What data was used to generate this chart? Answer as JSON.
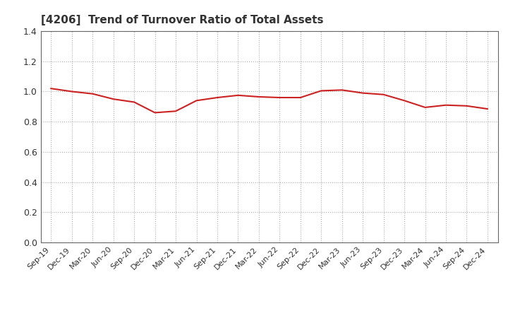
{
  "title": "[4206]  Trend of Turnover Ratio of Total Assets",
  "title_fontsize": 11,
  "line_color": "#cc2222",
  "line_width": 1.5,
  "background_color": "#ffffff",
  "grid_color": "#aaaaaa",
  "ylim": [
    0.0,
    1.4
  ],
  "yticks": [
    0.0,
    0.2,
    0.4,
    0.6,
    0.8,
    1.0,
    1.2,
    1.4
  ],
  "x_labels": [
    "Sep-19",
    "Dec-19",
    "Mar-20",
    "Jun-20",
    "Sep-20",
    "Dec-20",
    "Mar-21",
    "Jun-21",
    "Sep-21",
    "Dec-21",
    "Mar-22",
    "Jun-22",
    "Sep-22",
    "Dec-22",
    "Mar-23",
    "Jun-23",
    "Sep-23",
    "Dec-23",
    "Mar-24",
    "Jun-24",
    "Sep-24",
    "Dec-24"
  ],
  "values": [
    1.02,
    1.0,
    0.985,
    0.95,
    0.93,
    0.86,
    0.87,
    0.94,
    0.96,
    0.975,
    0.965,
    0.96,
    0.96,
    1.005,
    1.01,
    0.99,
    0.98,
    0.94,
    0.895,
    0.91,
    0.905,
    0.885
  ]
}
